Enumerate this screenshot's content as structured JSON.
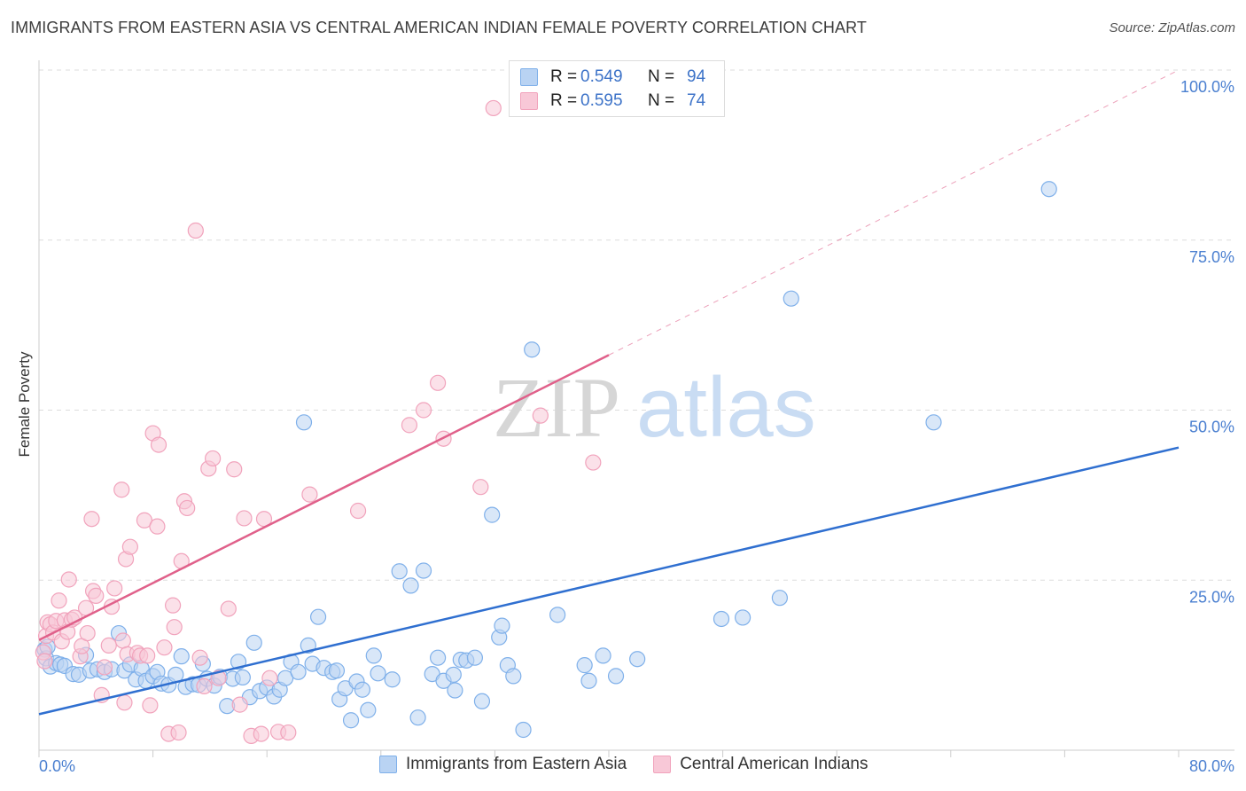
{
  "chart_data": {
    "type": "scatter",
    "title": "IMMIGRANTS FROM EASTERN ASIA VS CENTRAL AMERICAN INDIAN FEMALE POVERTY CORRELATION CHART",
    "source": "Source: ZipAtlas.com",
    "xlabel": "",
    "ylabel": "Female Poverty",
    "xlim": [
      0,
      80
    ],
    "ylim": [
      0,
      100
    ],
    "x_tick_labels": [
      "0.0%",
      "80.0%"
    ],
    "y_ticks": [
      {
        "value": 25,
        "label": "25.0%"
      },
      {
        "value": 50,
        "label": "50.0%"
      },
      {
        "value": 75,
        "label": "75.0%"
      },
      {
        "value": 100,
        "label": "100.0%"
      }
    ],
    "watermark": {
      "part1": "ZIP",
      "part2": "atlas"
    },
    "legend": [
      {
        "r_label": "R =",
        "r_value": "0.549",
        "n_label": "N =",
        "n_value": "94"
      },
      {
        "r_label": "R =",
        "r_value": "0.595",
        "n_label": "N =",
        "n_value": "74"
      }
    ],
    "series": [
      {
        "name": "Immigrants from Eastern Asia",
        "color": "#7fb0ea",
        "fill": "#b9d3f3",
        "line_color": "#2f6fd0",
        "trend": {
          "x0": 0,
          "y0": 5.3,
          "x1": 80,
          "y1": 44.5,
          "dashed_from": null
        },
        "points": [
          [
            0.4,
            14.8
          ],
          [
            0.5,
            13.5
          ],
          [
            0.6,
            15.2
          ],
          [
            0.8,
            12.3
          ],
          [
            1.2,
            12.8
          ],
          [
            1.5,
            12.6
          ],
          [
            1.8,
            12.4
          ],
          [
            2.4,
            11.2
          ],
          [
            2.8,
            11.1
          ],
          [
            3.3,
            14.0
          ],
          [
            3.6,
            11.7
          ],
          [
            4.1,
            11.9
          ],
          [
            4.6,
            11.5
          ],
          [
            5.1,
            11.9
          ],
          [
            5.6,
            17.2
          ],
          [
            6.0,
            11.7
          ],
          [
            6.4,
            12.6
          ],
          [
            6.8,
            10.4
          ],
          [
            7.2,
            12.0
          ],
          [
            7.5,
            10.2
          ],
          [
            8.0,
            10.9
          ],
          [
            8.3,
            11.5
          ],
          [
            8.6,
            9.8
          ],
          [
            9.1,
            9.6
          ],
          [
            9.6,
            11.1
          ],
          [
            10.0,
            13.8
          ],
          [
            10.3,
            9.3
          ],
          [
            10.8,
            9.7
          ],
          [
            11.2,
            9.6
          ],
          [
            11.5,
            12.7
          ],
          [
            11.8,
            10.5
          ],
          [
            12.3,
            9.5
          ],
          [
            12.7,
            10.8
          ],
          [
            13.2,
            6.5
          ],
          [
            13.6,
            10.5
          ],
          [
            14.0,
            13.0
          ],
          [
            14.3,
            10.7
          ],
          [
            14.8,
            7.8
          ],
          [
            15.1,
            15.8
          ],
          [
            15.5,
            8.7
          ],
          [
            16.0,
            9.2
          ],
          [
            16.5,
            7.9
          ],
          [
            16.9,
            8.9
          ],
          [
            17.3,
            10.6
          ],
          [
            17.7,
            13.0
          ],
          [
            18.2,
            11.5
          ],
          [
            18.6,
            48.2
          ],
          [
            18.9,
            15.4
          ],
          [
            19.2,
            12.7
          ],
          [
            19.6,
            19.6
          ],
          [
            20.0,
            12.1
          ],
          [
            20.6,
            11.5
          ],
          [
            20.9,
            11.7
          ],
          [
            21.1,
            7.5
          ],
          [
            21.5,
            9.1
          ],
          [
            21.9,
            4.4
          ],
          [
            22.3,
            10.1
          ],
          [
            22.7,
            8.9
          ],
          [
            23.1,
            5.9
          ],
          [
            23.5,
            13.9
          ],
          [
            23.8,
            11.3
          ],
          [
            24.8,
            10.4
          ],
          [
            25.3,
            26.3
          ],
          [
            26.1,
            24.2
          ],
          [
            26.6,
            4.8
          ],
          [
            27.0,
            26.4
          ],
          [
            27.6,
            11.2
          ],
          [
            28.0,
            13.6
          ],
          [
            28.4,
            10.2
          ],
          [
            29.1,
            11.1
          ],
          [
            29.6,
            13.3
          ],
          [
            30.0,
            13.2
          ],
          [
            29.2,
            8.8
          ],
          [
            30.6,
            13.6
          ],
          [
            31.1,
            7.2
          ],
          [
            31.8,
            34.6
          ],
          [
            32.3,
            16.6
          ],
          [
            32.5,
            18.3
          ],
          [
            32.9,
            12.5
          ],
          [
            33.3,
            10.9
          ],
          [
            34.0,
            3.0
          ],
          [
            34.6,
            58.9
          ],
          [
            36.4,
            19.9
          ],
          [
            38.3,
            12.5
          ],
          [
            38.6,
            10.2
          ],
          [
            39.6,
            13.9
          ],
          [
            42.0,
            13.4
          ],
          [
            49.4,
            19.5
          ],
          [
            52.0,
            22.4
          ],
          [
            62.8,
            48.2
          ],
          [
            52.8,
            66.4
          ],
          [
            70.9,
            82.5
          ],
          [
            47.9,
            19.3
          ],
          [
            40.5,
            10.9
          ]
        ]
      },
      {
        "name": "Central American Indians",
        "color": "#f1a3bc",
        "fill": "#f8c8d7",
        "line_color": "#e0608a",
        "trend": {
          "x0": 0,
          "y0": 16.2,
          "x1": 80,
          "y1": 100,
          "dashed_from": 40
        },
        "points": [
          [
            0.3,
            14.4
          ],
          [
            0.4,
            13.1
          ],
          [
            0.5,
            16.8
          ],
          [
            0.6,
            18.8
          ],
          [
            0.8,
            18.5
          ],
          [
            1.0,
            17.3
          ],
          [
            1.2,
            19.0
          ],
          [
            1.4,
            22.0
          ],
          [
            1.6,
            16.0
          ],
          [
            1.8,
            19.1
          ],
          [
            2.0,
            17.4
          ],
          [
            2.1,
            25.1
          ],
          [
            2.3,
            19.2
          ],
          [
            2.5,
            19.5
          ],
          [
            2.9,
            13.8
          ],
          [
            3.0,
            15.3
          ],
          [
            3.3,
            20.9
          ],
          [
            3.4,
            17.2
          ],
          [
            3.7,
            34.0
          ],
          [
            3.8,
            23.4
          ],
          [
            4.0,
            22.7
          ],
          [
            4.4,
            8.1
          ],
          [
            4.6,
            12.2
          ],
          [
            4.9,
            15.4
          ],
          [
            5.1,
            21.1
          ],
          [
            5.3,
            23.8
          ],
          [
            5.8,
            38.3
          ],
          [
            5.9,
            16.1
          ],
          [
            6.1,
            28.1
          ],
          [
            6.2,
            14.1
          ],
          [
            6.4,
            29.9
          ],
          [
            6.9,
            14.3
          ],
          [
            7.1,
            13.9
          ],
          [
            7.4,
            33.8
          ],
          [
            7.6,
            13.9
          ],
          [
            7.8,
            6.6
          ],
          [
            8.0,
            46.6
          ],
          [
            8.3,
            32.9
          ],
          [
            8.4,
            44.9
          ],
          [
            8.8,
            15.1
          ],
          [
            9.1,
            2.4
          ],
          [
            9.4,
            21.3
          ],
          [
            9.5,
            18.1
          ],
          [
            9.8,
            2.6
          ],
          [
            10.0,
            27.8
          ],
          [
            10.2,
            36.6
          ],
          [
            10.4,
            35.6
          ],
          [
            11.0,
            76.4
          ],
          [
            11.3,
            13.6
          ],
          [
            11.6,
            9.4
          ],
          [
            11.9,
            41.4
          ],
          [
            12.2,
            42.9
          ],
          [
            12.6,
            10.6
          ],
          [
            13.3,
            20.8
          ],
          [
            13.7,
            41.3
          ],
          [
            14.1,
            6.7
          ],
          [
            14.4,
            34.1
          ],
          [
            14.9,
            2.1
          ],
          [
            15.6,
            2.4
          ],
          [
            15.8,
            34.0
          ],
          [
            16.8,
            2.7
          ],
          [
            16.2,
            10.6
          ],
          [
            19.0,
            37.6
          ],
          [
            22.4,
            35.2
          ],
          [
            26.0,
            47.8
          ],
          [
            27.0,
            50.0
          ],
          [
            28.0,
            54.0
          ],
          [
            28.4,
            45.8
          ],
          [
            31.0,
            38.7
          ],
          [
            31.9,
            94.4
          ],
          [
            35.2,
            49.2
          ],
          [
            38.9,
            42.3
          ],
          [
            17.5,
            2.6
          ],
          [
            6.0,
            7.0
          ]
        ]
      }
    ]
  },
  "bottom_legend": [
    {
      "label": "Immigrants from Eastern Asia",
      "color": "#b9d3f3",
      "border": "#7fb0ea"
    },
    {
      "label": "Central American Indians",
      "color": "#f8c8d7",
      "border": "#f1a3bc"
    }
  ]
}
